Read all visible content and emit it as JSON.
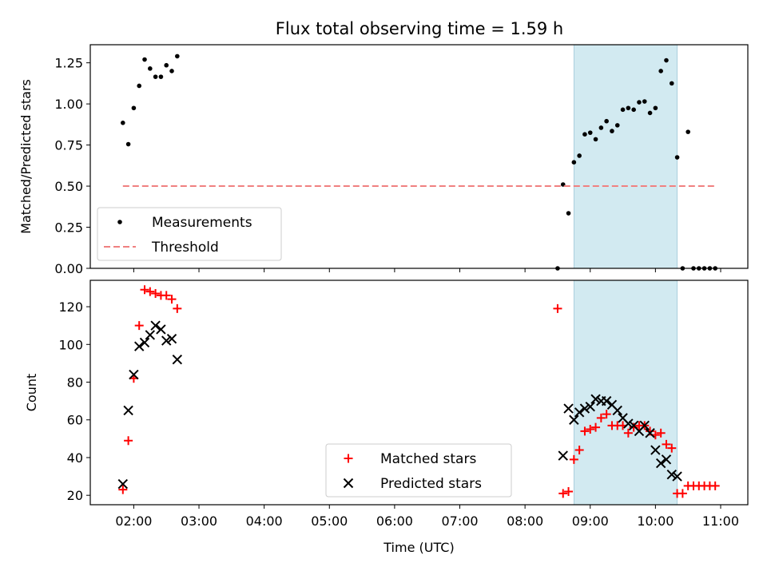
{
  "chart_data": [
    {
      "type": "scatter",
      "title": "Flux total observing time = 1.59 h",
      "ylabel": "Matched/Predicted stars",
      "ylim": [
        0,
        1.36
      ],
      "yticks": [
        0.0,
        0.25,
        0.5,
        0.75,
        1.0,
        1.25
      ],
      "ytick_labels": [
        "0.00",
        "0.25",
        "0.50",
        "0.75",
        "1.00",
        "1.25"
      ],
      "grid": false,
      "legend_position": "lower-left",
      "highlight_span": {
        "x": [
          "08:45",
          "10:20"
        ],
        "color": "#add8e6"
      },
      "series": [
        {
          "name": "Measurements",
          "marker": "dot",
          "color": "#000000",
          "points": [
            [
              "01:50",
              0.885
            ],
            [
              "01:55",
              0.755
            ],
            [
              "02:00",
              0.975
            ],
            [
              "02:05",
              1.11
            ],
            [
              "02:10",
              1.27
            ],
            [
              "02:15",
              1.215
            ],
            [
              "02:20",
              1.165
            ],
            [
              "02:25",
              1.165
            ],
            [
              "02:30",
              1.235
            ],
            [
              "02:35",
              1.2
            ],
            [
              "02:40",
              1.29
            ],
            [
              "08:30",
              0.0
            ],
            [
              "08:35",
              0.51
            ],
            [
              "08:40",
              0.335
            ],
            [
              "08:45",
              0.645
            ],
            [
              "08:50",
              0.685
            ],
            [
              "08:55",
              0.815
            ],
            [
              "09:00",
              0.825
            ],
            [
              "09:05",
              0.785
            ],
            [
              "09:10",
              0.855
            ],
            [
              "09:15",
              0.895
            ],
            [
              "09:20",
              0.835
            ],
            [
              "09:25",
              0.87
            ],
            [
              "09:30",
              0.965
            ],
            [
              "09:35",
              0.975
            ],
            [
              "09:40",
              0.965
            ],
            [
              "09:45",
              1.01
            ],
            [
              "09:50",
              1.015
            ],
            [
              "09:55",
              0.945
            ],
            [
              "10:00",
              0.975
            ],
            [
              "10:05",
              1.2
            ],
            [
              "10:10",
              1.265
            ],
            [
              "10:15",
              1.125
            ],
            [
              "10:20",
              0.675
            ],
            [
              "10:25",
              0.0
            ],
            [
              "10:30",
              0.83
            ],
            [
              "10:35",
              0.0
            ],
            [
              "10:40",
              0.0
            ],
            [
              "10:45",
              0.0
            ],
            [
              "10:50",
              0.0
            ],
            [
              "10:55",
              0.0
            ]
          ]
        },
        {
          "name": "Threshold",
          "marker": "dashed-line",
          "color": "#f08080",
          "points": [
            [
              "01:50",
              0.5
            ],
            [
              "10:55",
              0.5
            ]
          ]
        }
      ]
    },
    {
      "type": "scatter",
      "xlabel": "Time (UTC)",
      "ylabel": "Count",
      "xlim": [
        "01:20",
        "11:25"
      ],
      "ylim": [
        15,
        134
      ],
      "xticks": [
        "02:00",
        "03:00",
        "04:00",
        "05:00",
        "06:00",
        "07:00",
        "08:00",
        "09:00",
        "10:00",
        "11:00"
      ],
      "yticks": [
        20,
        40,
        60,
        80,
        100,
        120
      ],
      "ytick_labels": [
        "20",
        "40",
        "60",
        "80",
        "100",
        "120"
      ],
      "grid": false,
      "legend_position": "lower-center",
      "highlight_span": {
        "x": [
          "08:45",
          "10:20"
        ],
        "color": "#add8e6"
      },
      "series": [
        {
          "name": "Matched stars",
          "marker": "plus",
          "color": "#ff0000",
          "points": [
            [
              "01:50",
              23
            ],
            [
              "01:55",
              49
            ],
            [
              "02:00",
              82
            ],
            [
              "02:05",
              110
            ],
            [
              "02:10",
              129
            ],
            [
              "02:15",
              128
            ],
            [
              "02:20",
              127
            ],
            [
              "02:25",
              126
            ],
            [
              "02:30",
              126
            ],
            [
              "02:35",
              124
            ],
            [
              "02:40",
              119
            ],
            [
              "08:30",
              119
            ],
            [
              "08:35",
              21
            ],
            [
              "08:40",
              22
            ],
            [
              "08:45",
              39
            ],
            [
              "08:50",
              44
            ],
            [
              "08:55",
              54
            ],
            [
              "09:00",
              55
            ],
            [
              "09:05",
              56
            ],
            [
              "09:10",
              61
            ],
            [
              "09:15",
              63
            ],
            [
              "09:20",
              57
            ],
            [
              "09:25",
              57
            ],
            [
              "09:30",
              57
            ],
            [
              "09:35",
              53
            ],
            [
              "09:40",
              56
            ],
            [
              "09:45",
              57
            ],
            [
              "09:50",
              57
            ],
            [
              "09:55",
              54
            ],
            [
              "10:00",
              52
            ],
            [
              "10:05",
              53
            ],
            [
              "10:10",
              47
            ],
            [
              "10:15",
              45
            ],
            [
              "10:20",
              21
            ],
            [
              "10:25",
              21
            ],
            [
              "10:30",
              25
            ],
            [
              "10:35",
              25
            ],
            [
              "10:40",
              25
            ],
            [
              "10:45",
              25
            ],
            [
              "10:50",
              25
            ],
            [
              "10:55",
              25
            ]
          ]
        },
        {
          "name": "Predicted stars",
          "marker": "x",
          "color": "#000000",
          "points": [
            [
              "01:50",
              26
            ],
            [
              "01:55",
              65
            ],
            [
              "02:00",
              84
            ],
            [
              "02:05",
              99
            ],
            [
              "02:10",
              101
            ],
            [
              "02:15",
              105
            ],
            [
              "02:20",
              110
            ],
            [
              "02:25",
              108
            ],
            [
              "02:30",
              102
            ],
            [
              "02:35",
              103
            ],
            [
              "02:40",
              92
            ],
            [
              "08:35",
              41
            ],
            [
              "08:40",
              66
            ],
            [
              "08:45",
              60
            ],
            [
              "08:50",
              64
            ],
            [
              "08:55",
              66
            ],
            [
              "09:00",
              67
            ],
            [
              "09:05",
              71
            ],
            [
              "09:10",
              70
            ],
            [
              "09:15",
              70
            ],
            [
              "09:20",
              68
            ],
            [
              "09:25",
              65
            ],
            [
              "09:30",
              61
            ],
            [
              "09:35",
              58
            ],
            [
              "09:40",
              57
            ],
            [
              "09:45",
              54
            ],
            [
              "09:50",
              57
            ],
            [
              "09:55",
              53
            ],
            [
              "10:00",
              44
            ],
            [
              "10:05",
              37
            ],
            [
              "10:10",
              39
            ],
            [
              "10:15",
              31
            ],
            [
              "10:20",
              30
            ]
          ]
        }
      ]
    }
  ]
}
